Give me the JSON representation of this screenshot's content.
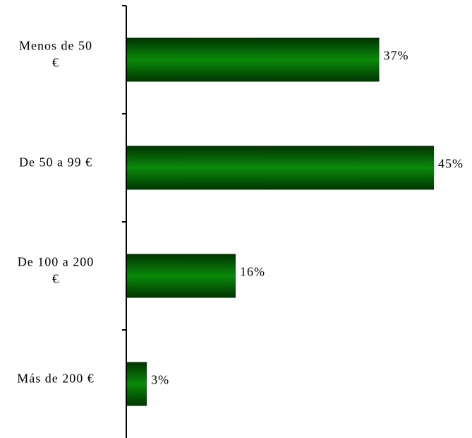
{
  "chart_data": {
    "type": "bar",
    "orientation": "horizontal",
    "title": "",
    "xlabel": "",
    "ylabel": "",
    "categories": [
      [
        "Menos de 50",
        "€"
      ],
      [
        "De 50 a 99 €"
      ],
      [
        "De 100 a 200",
        "€"
      ],
      [
        "Más de 200 €"
      ]
    ],
    "values": [
      37,
      45,
      16,
      3
    ],
    "value_labels": [
      "37%",
      "45%",
      "16%",
      "3%"
    ],
    "xlim": [
      0,
      45
    ],
    "grid": false,
    "legend": "none",
    "colors": {
      "bar_mid": "#0a8a0a",
      "bar_edge": "#003300",
      "axis": "#000000"
    }
  }
}
